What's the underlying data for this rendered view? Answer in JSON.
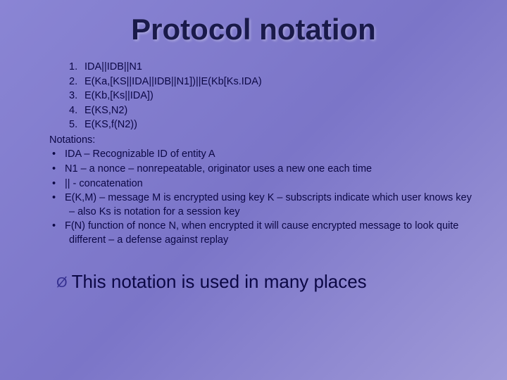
{
  "title": "Protocol notation",
  "steps": [
    {
      "n": "1.",
      "text": "IDA||IDB||N1"
    },
    {
      "n": "2.",
      "text": "E(Ka,[KS||IDA||IDB||N1])||E(Kb[Ks.IDA)"
    },
    {
      "n": "3.",
      "text": "E(Kb,[Ks||IDA])"
    },
    {
      "n": "4.",
      "text": "E(KS,N2)"
    },
    {
      "n": "5.",
      "text": "E(KS,f(N2))"
    }
  ],
  "notations_label": "Notations:",
  "bullets": [
    "IDA – Recognizable ID of entity A",
    "N1 – a nonce – nonrepeatable, originator uses a new one each time",
    "|| - concatenation",
    "E(K,M) – message M is encrypted using key K – subscripts indicate which user knows key – also Ks is notation for a session key",
    "F(N) function of nonce N, when encrypted it will cause encrypted message to look quite different – a defense against replay"
  ],
  "footer": "This notation is used in many places",
  "colors": {
    "bg_start": "#8a85d4",
    "bg_end": "#a09ad8",
    "title_color": "#1a1a4a",
    "body_color": "#0c0845"
  },
  "typography": {
    "title_fontsize": 42,
    "body_fontsize": 14.5,
    "footer_fontsize": 26
  }
}
